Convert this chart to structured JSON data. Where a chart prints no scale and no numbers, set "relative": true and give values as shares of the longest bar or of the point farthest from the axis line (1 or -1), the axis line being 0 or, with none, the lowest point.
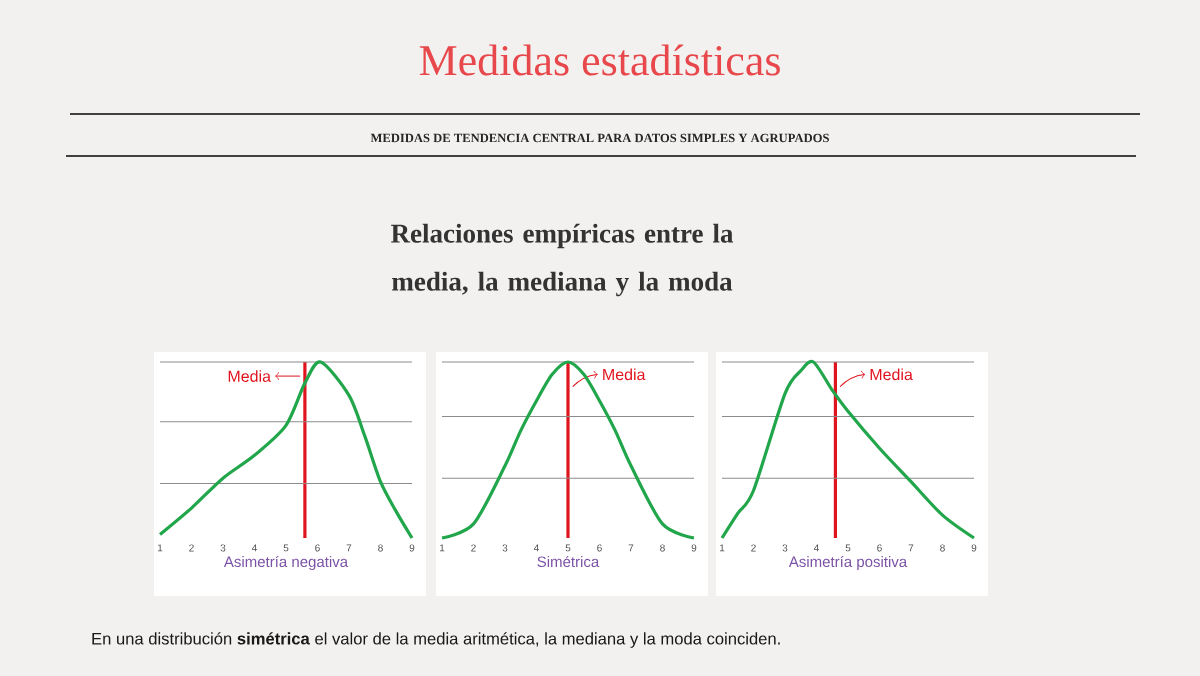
{
  "chart_data": [
    {
      "type": "other",
      "title": "Medidas estadísticas",
      "subtitle": "MEDIDAS DE TENDENCIA CENTRAL PARA DATOS SIMPLES Y AGRUPADOS",
      "annotations": [
        "Relaciones empíricas entre la media, la mediana y la moda",
        "En una distribución **simétrica** el valor de la media aritmética, la mediana y la moda coinciden."
      ]
    },
    {
      "type": "line",
      "relative": true,
      "xlabel": "Asimetría negativa",
      "x": [
        1,
        2,
        3,
        4,
        5,
        5.6,
        6.1,
        7,
        7.5,
        8,
        8.5,
        9
      ],
      "series": [
        {
          "color": "#22a64b",
          "values": [
            0.02,
            0.17,
            0.34,
            0.47,
            0.64,
            0.88,
            1,
            0.81,
            0.58,
            0.32,
            0.15,
            0
          ]
        }
      ],
      "xlim": [
        1,
        9
      ],
      "xticks": [
        1,
        2,
        3,
        4,
        5,
        6,
        7,
        8,
        9
      ],
      "ref_lines": [
        {
          "axis": "x",
          "value": 5.6,
          "label": "Media",
          "color": "#e0141e"
        },
        {
          "axis": "y",
          "value": 0.31,
          "color": "#8c8c8c"
        },
        {
          "axis": "y",
          "value": 0.66,
          "color": "#8c8c8c"
        },
        {
          "axis": "y",
          "value": 1,
          "color": "#8c8c8c"
        }
      ]
    },
    {
      "type": "line",
      "relative": true,
      "xlabel": "Simétrica",
      "x": [
        1,
        2,
        3,
        3.5,
        4,
        4.5,
        5,
        5.5,
        6,
        6.5,
        7,
        8,
        9
      ],
      "series": [
        {
          "color": "#22a64b",
          "values": [
            0,
            0.08,
            0.41,
            0.61,
            0.78,
            0.93,
            1,
            0.93,
            0.78,
            0.61,
            0.41,
            0.08,
            0
          ]
        }
      ],
      "xlim": [
        1,
        9
      ],
      "xticks": [
        1,
        2,
        3,
        4,
        5,
        6,
        7,
        8,
        9
      ],
      "ref_lines": [
        {
          "axis": "x",
          "value": 5,
          "label": "Media",
          "color": "#e0141e"
        },
        {
          "axis": "y",
          "value": 0.34,
          "color": "#8c8c8c"
        },
        {
          "axis": "y",
          "value": 0.69,
          "color": "#8c8c8c"
        },
        {
          "axis": "y",
          "value": 1,
          "color": "#8c8c8c"
        }
      ]
    },
    {
      "type": "line",
      "relative": true,
      "xlabel": "Asimetría positiva",
      "x": [
        1,
        1.5,
        2,
        3,
        3.5,
        3.9,
        4.5,
        5,
        6,
        7,
        8,
        9
      ],
      "series": [
        {
          "color": "#22a64b",
          "values": [
            0,
            0.14,
            0.27,
            0.82,
            0.95,
            1,
            0.84,
            0.72,
            0.51,
            0.32,
            0.13,
            0
          ]
        }
      ],
      "xlim": [
        1,
        9
      ],
      "xticks": [
        1,
        2,
        3,
        4,
        5,
        6,
        7,
        8,
        9
      ],
      "ref_lines": [
        {
          "axis": "x",
          "value": 4.6,
          "label": "Media",
          "color": "#e0141e"
        },
        {
          "axis": "y",
          "value": 0.34,
          "color": "#8c8c8c"
        },
        {
          "axis": "y",
          "value": 0.69,
          "color": "#8c8c8c"
        },
        {
          "axis": "y",
          "value": 1,
          "color": "#8c8c8c"
        }
      ]
    }
  ]
}
